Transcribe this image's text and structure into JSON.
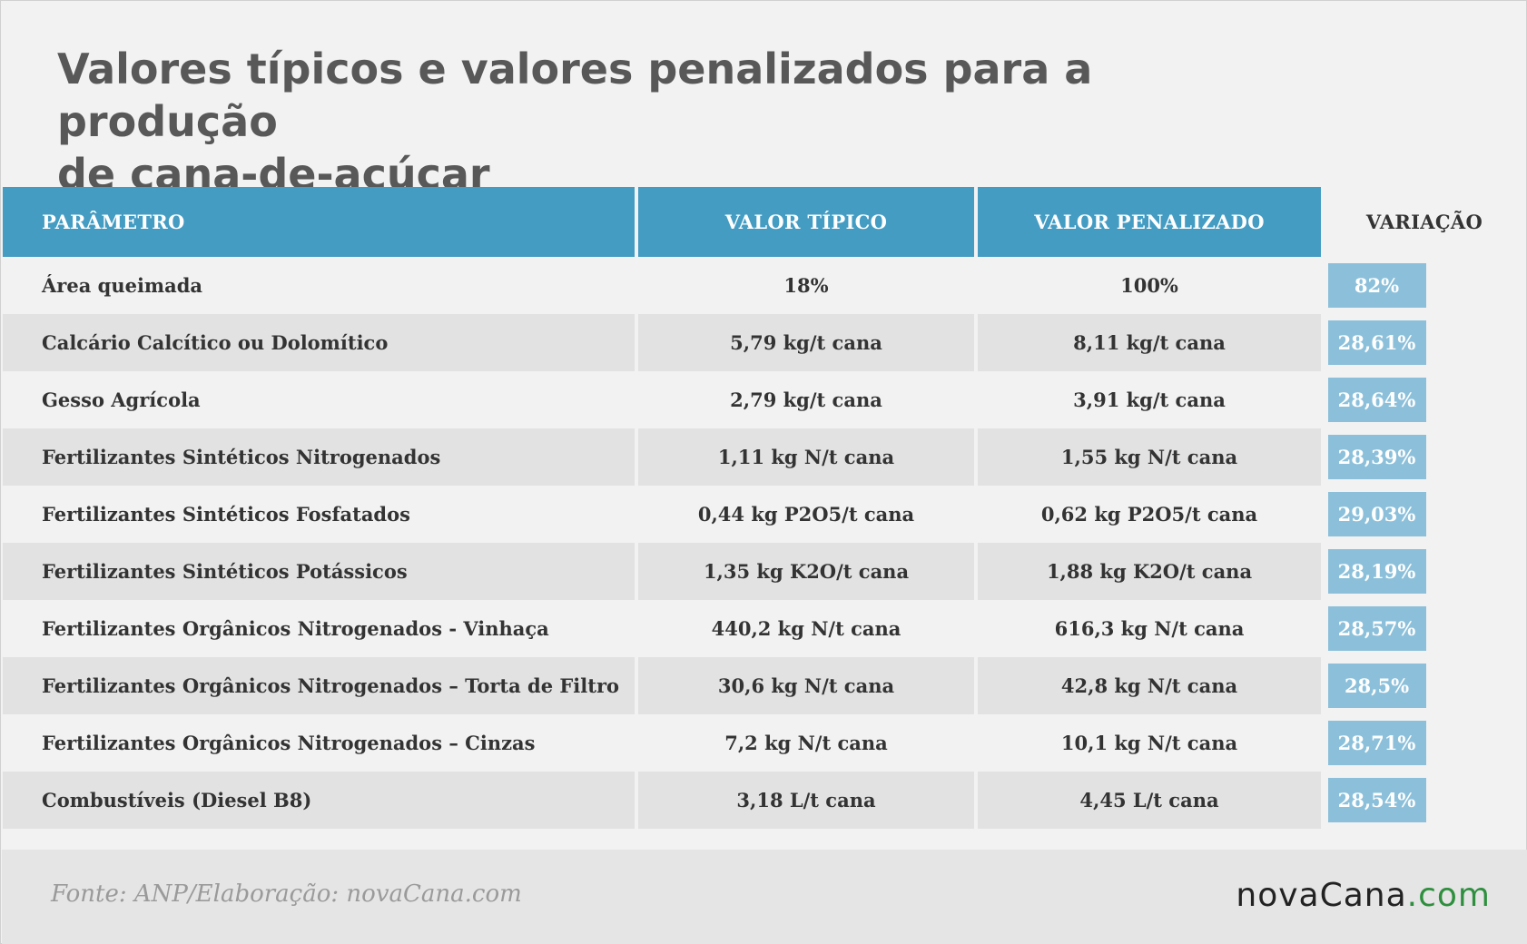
{
  "title": {
    "line1": "Valores típicos e valores penalizados para a produção",
    "line2": "de cana-de-açúcar"
  },
  "table": {
    "headers": {
      "parametro": "PARÂMETRO",
      "valor_tipico": "VALOR TÍPICO",
      "valor_penalizado": "VALOR PENALIZADO",
      "variacao": "VARIAÇÃO"
    },
    "rows": [
      {
        "parametro": "Área queimada",
        "valor_tipico": "18%",
        "valor_penalizado": "100%",
        "variacao": "82%"
      },
      {
        "parametro": "Calcário Calcítico ou Dolomítico",
        "valor_tipico": "5,79 kg/t cana",
        "valor_penalizado": "8,11 kg/t cana",
        "variacao": "28,61%"
      },
      {
        "parametro": "Gesso Agrícola",
        "valor_tipico": "2,79 kg/t cana",
        "valor_penalizado": "3,91 kg/t cana",
        "variacao": "28,64%"
      },
      {
        "parametro": "Fertilizantes Sintéticos Nitrogenados",
        "valor_tipico": "1,11 kg N/t cana",
        "valor_penalizado": "1,55 kg N/t cana",
        "variacao": "28,39%"
      },
      {
        "parametro": "Fertilizantes Sintéticos Fosfatados",
        "valor_tipico": "0,44 kg P2O5/t cana",
        "valor_penalizado": "0,62 kg P2O5/t cana",
        "variacao": "29,03%"
      },
      {
        "parametro": "Fertilizantes Sintéticos Potássicos",
        "valor_tipico": "1,35 kg K2O/t cana",
        "valor_penalizado": "1,88 kg K2O/t cana",
        "variacao": "28,19%"
      },
      {
        "parametro": "Fertilizantes Orgânicos Nitrogenados - Vinhaça",
        "valor_tipico": "440,2 kg N/t cana",
        "valor_penalizado": "616,3 kg N/t cana",
        "variacao": "28,57%"
      },
      {
        "parametro": "Fertilizantes Orgânicos Nitrogenados – Torta de Filtro",
        "valor_tipico": "30,6 kg N/t cana",
        "valor_penalizado": "42,8 kg N/t cana",
        "variacao": "28,5%"
      },
      {
        "parametro": "Fertilizantes Orgânicos Nitrogenados – Cinzas",
        "valor_tipico": "7,2 kg N/t cana",
        "valor_penalizado": "10,1 kg N/t cana",
        "variacao": "28,71%"
      },
      {
        "parametro": "Combustíveis (Diesel B8)",
        "valor_tipico": "3,18 L/t cana",
        "valor_penalizado": "4,45 L/t cana",
        "variacao": "28,54%"
      }
    ]
  },
  "footer": {
    "source": "Fonte: ANP/Elaboração: novaCana.com",
    "logo_main": "novaCana",
    "logo_suffix": ".com"
  },
  "colors": {
    "header_blue": "#449cc3",
    "badge_blue": "#8cc0da",
    "logo_green": "#2e8f3e"
  }
}
